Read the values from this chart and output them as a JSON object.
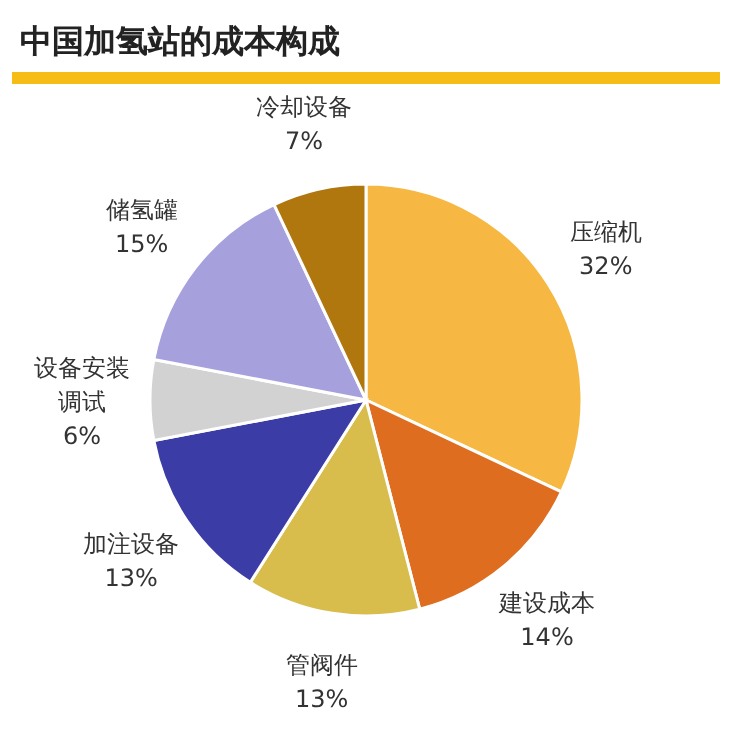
{
  "chart_data": {
    "type": "pie",
    "title": "中国加氢站的成本构成",
    "categories": [
      "压缩机",
      "建设成本",
      "管阀件",
      "加注设备",
      "设备安装调试",
      "储氢罐",
      "冷却设备"
    ],
    "values": [
      32,
      14,
      13,
      13,
      6,
      15,
      7
    ],
    "colors": [
      "#f6b843",
      "#df6d20",
      "#d8bd4d",
      "#3b3ca6",
      "#d2d2d2",
      "#a6a1dd",
      "#b1770f"
    ],
    "value_labels": [
      "32%",
      "14%",
      "13%",
      "13%",
      "6%",
      "15%",
      "7%"
    ]
  }
}
